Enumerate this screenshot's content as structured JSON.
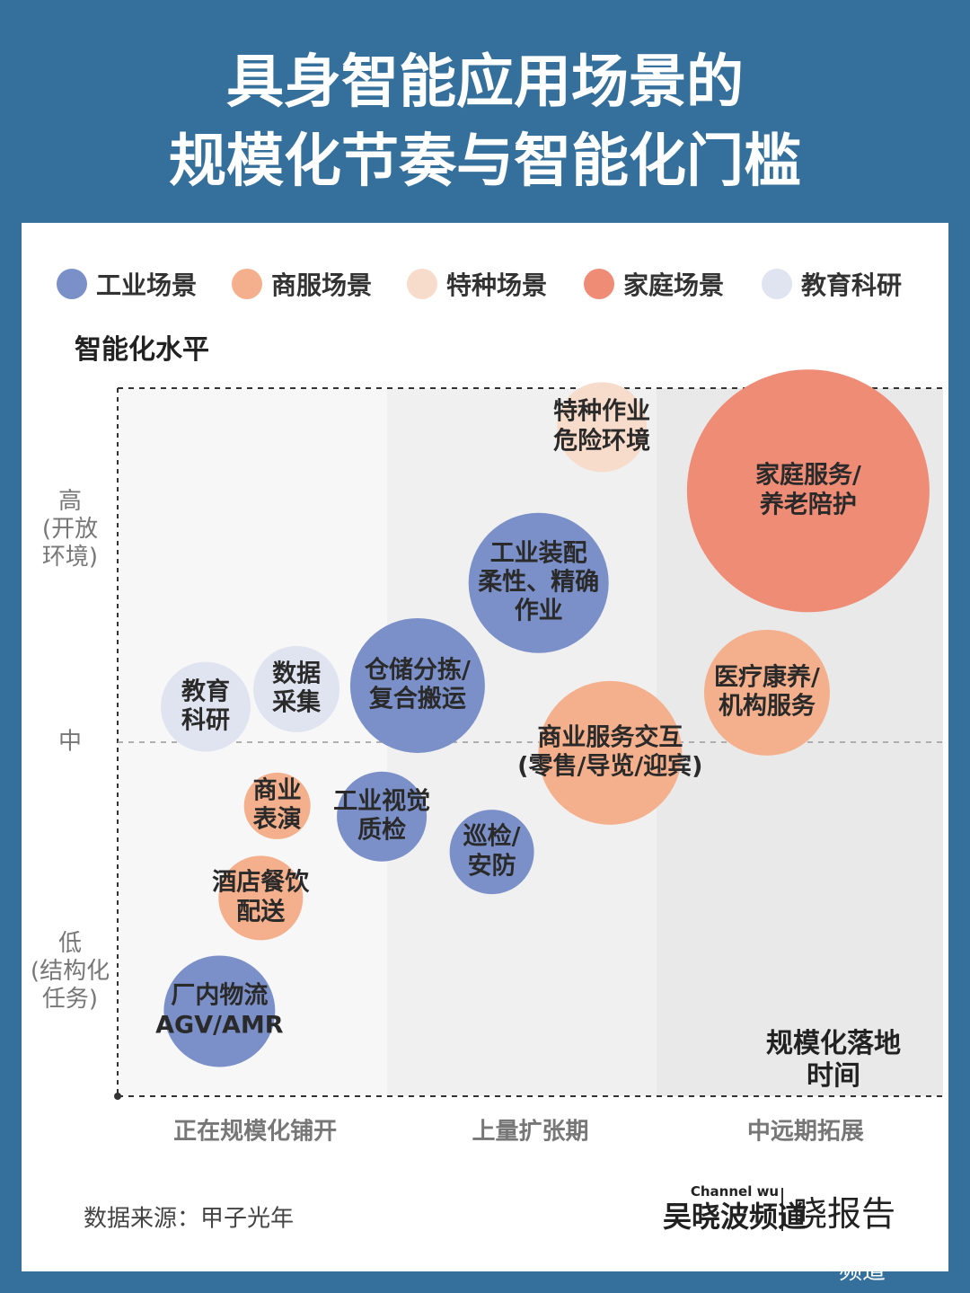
{
  "header": {
    "title_line1": "具身智能应用场景的",
    "title_line2": "规模化节奏与智能化门槛"
  },
  "chart_data": {
    "type": "bubble",
    "y_label": "智能化水平",
    "x_label": "规模化落地时间",
    "xlim": [
      0,
      3
    ],
    "ylim": [
      0,
      2
    ],
    "xticks": [
      {
        "value": 0.5,
        "label": "正在规模化铺开"
      },
      {
        "value": 1.5,
        "label": "上量扩张期"
      },
      {
        "value": 2.5,
        "label": "中远期拓展"
      }
    ],
    "yticks": [
      {
        "value": 0.35,
        "label": "低\n(结构化\n任务)"
      },
      {
        "value": 1,
        "label": "中"
      },
      {
        "value": 1.6,
        "label": "高\n(开放\n环境)"
      }
    ],
    "grid": true,
    "series": [
      {
        "name": "工业场景",
        "color": "#7b90c8",
        "points": [
          {
            "label": "工业装配\n柔性、精确\n作业",
            "x": 1.53,
            "y": 1.45,
            "size": 78
          },
          {
            "label": "仓储分拣/\n复合搬运",
            "x": 1.09,
            "y": 1.16,
            "size": 75
          },
          {
            "label": "工业视觉\n质检",
            "x": 0.96,
            "y": 0.79,
            "size": 50
          },
          {
            "label": "巡检/\n安防",
            "x": 1.36,
            "y": 0.69,
            "size": 47
          },
          {
            "label": "厂内物流\nAGV/AMR",
            "x": 0.37,
            "y": 0.24,
            "size": 62
          }
        ]
      },
      {
        "name": "商服场景",
        "color": "#f4b08c",
        "points": [
          {
            "label": "医疗康养/\n机构服务",
            "x": 2.36,
            "y": 1.14,
            "size": 70
          },
          {
            "label": "商业服务交互\n(零售/导览/迎宾)",
            "x": 1.79,
            "y": 0.97,
            "size": 80
          },
          {
            "label": "商业\n表演",
            "x": 0.58,
            "y": 0.82,
            "size": 37
          },
          {
            "label": "酒店餐饮\n配送",
            "x": 0.52,
            "y": 0.56,
            "size": 47
          }
        ]
      },
      {
        "name": "特种场景",
        "color": "#f8dccb",
        "points": [
          {
            "label": "特种作业\n危险环境",
            "x": 1.76,
            "y": 1.89,
            "size": 50
          }
        ]
      },
      {
        "name": "家庭场景",
        "color": "#ee8c76",
        "points": [
          {
            "label": "家庭服务/\n养老陪护",
            "x": 2.51,
            "y": 1.71,
            "size": 135
          }
        ]
      },
      {
        "name": "教育科研",
        "color": "#e0e4f0",
        "points": [
          {
            "label": "教育\n科研",
            "x": 0.32,
            "y": 1.1,
            "size": 50
          },
          {
            "label": "数据\n采集",
            "x": 0.65,
            "y": 1.15,
            "size": 48
          }
        ]
      }
    ]
  },
  "footer": {
    "source": "数据来源：甲子光年",
    "brand_top": "Channel wu",
    "brand_name": "吴晓波频道",
    "brand_report": "晓报告",
    "watermark": "@吴晓波频道"
  }
}
